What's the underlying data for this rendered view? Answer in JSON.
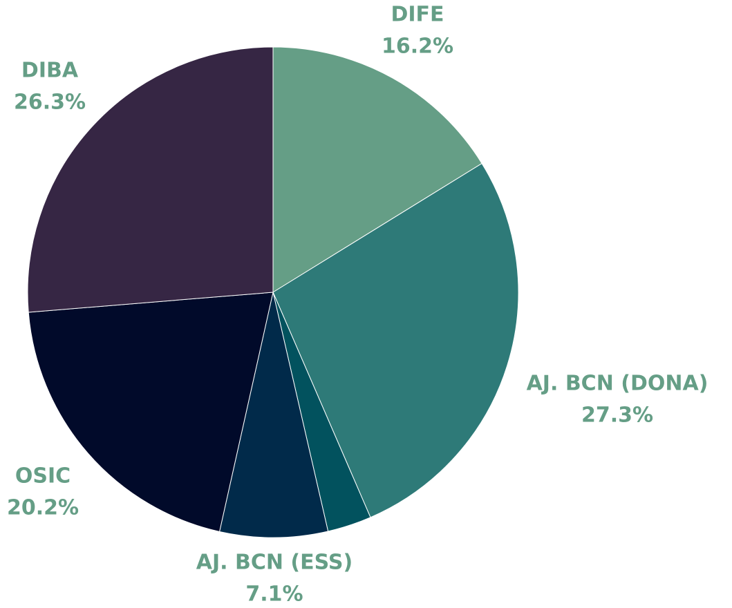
{
  "chart_data": {
    "type": "pie",
    "categories": [
      "DIFE",
      "AJ. BCN (DONA)",
      null,
      "AJ. BCN (ESS)",
      "OSIC",
      "DIBA"
    ],
    "values": [
      16.2,
      27.3,
      2.9,
      7.1,
      20.2,
      26.3
    ],
    "value_labels": [
      "16.2%",
      "27.3%",
      null,
      "7.1%",
      "20.2%",
      "26.3%"
    ],
    "colors": [
      "#659e86",
      "#2e7a78",
      "#02525e",
      "#012a4a",
      "#010a2a",
      "#362644"
    ]
  }
}
